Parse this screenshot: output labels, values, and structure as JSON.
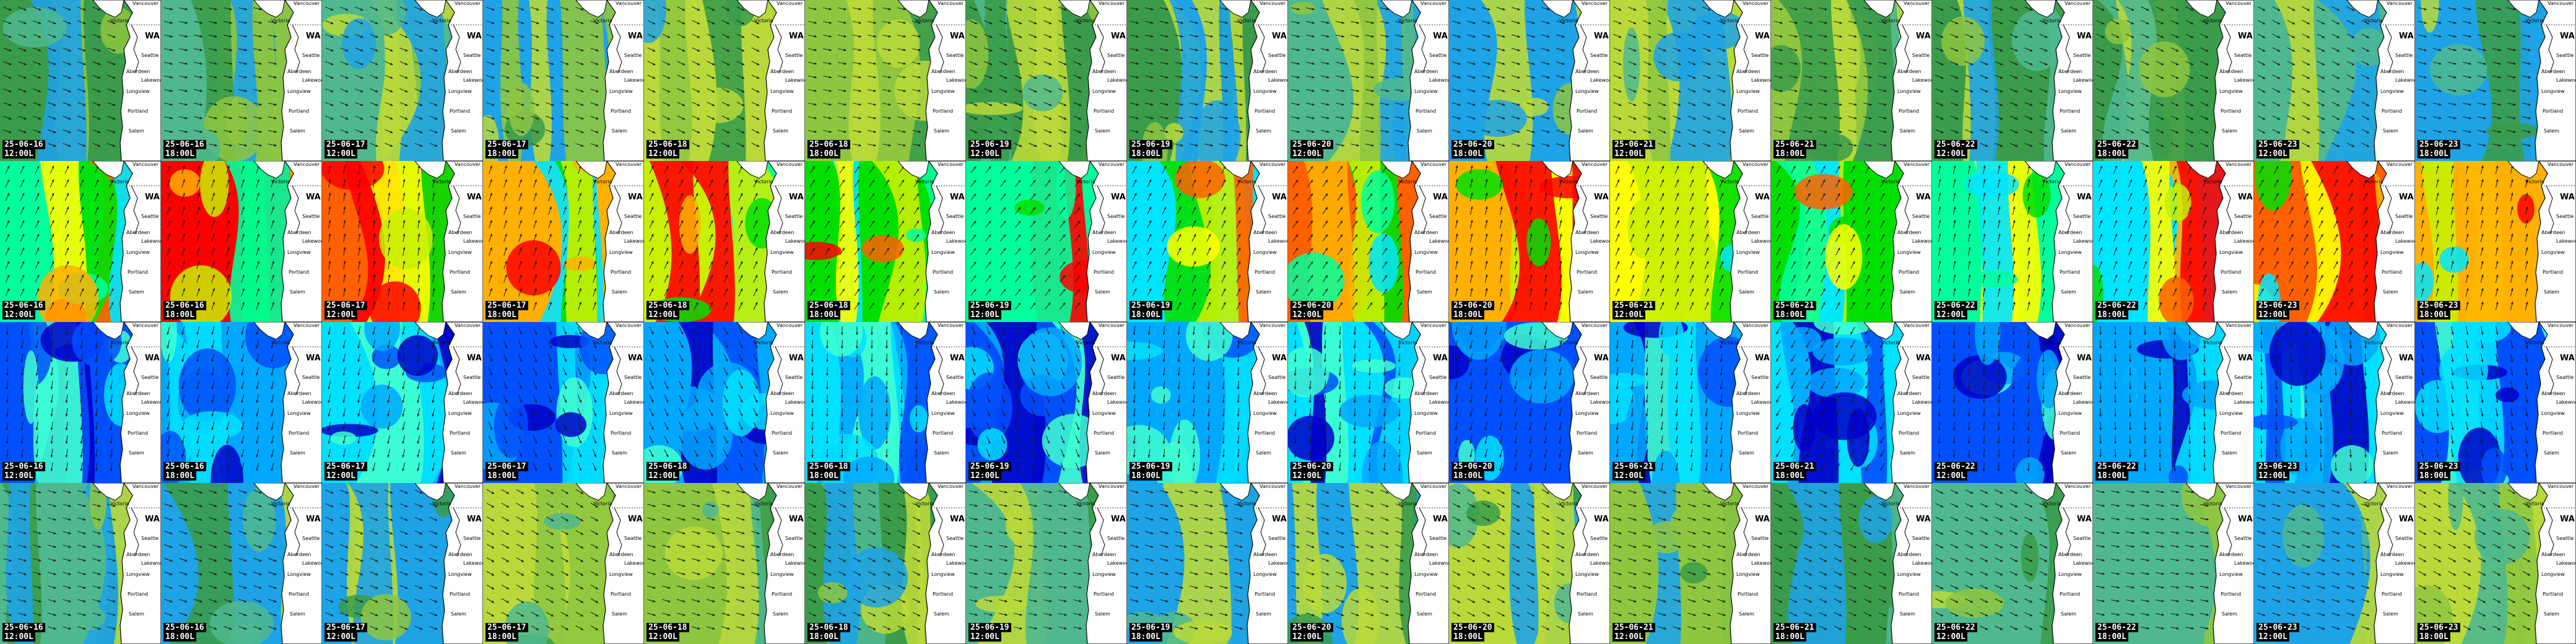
{
  "grid": {
    "columns": 16,
    "rows": [
      {
        "row": "wind-row",
        "theme": "wind",
        "dates": [
          "25-06-16",
          "25-06-16",
          "25-06-17",
          "25-06-17",
          "25-06-18",
          "25-06-18",
          "25-06-19",
          "25-06-19",
          "25-06-20",
          "25-06-20",
          "25-06-21",
          "25-06-21",
          "25-06-22",
          "25-06-22",
          "25-06-23",
          "25-06-23"
        ],
        "times": [
          "12:00L",
          "18:00L",
          "12:00L",
          "18:00L",
          "12:00L",
          "18:00L",
          "12:00L",
          "18:00L",
          "12:00L",
          "18:00L",
          "12:00L",
          "18:00L",
          "12:00L",
          "18:00L",
          "12:00L",
          "18:00L"
        ]
      },
      {
        "row": "wave-height-row",
        "theme": "wave",
        "dates": [
          "25-06-16",
          "25-06-16",
          "25-06-17",
          "25-06-17",
          "25-06-18",
          "25-06-18",
          "25-06-19",
          "25-06-19",
          "25-06-20",
          "25-06-20",
          "25-06-21",
          "25-06-21",
          "25-06-22",
          "25-06-22",
          "25-06-23",
          "25-06-23"
        ],
        "times": [
          "12:00L",
          "18:00L",
          "12:00L",
          "18:00L",
          "12:00L",
          "18:00L",
          "12:00L",
          "18:00L",
          "12:00L",
          "18:00L",
          "12:00L",
          "18:00L",
          "12:00L",
          "18:00L",
          "12:00L",
          "18:00L"
        ]
      },
      {
        "row": "current-row",
        "theme": "current",
        "dates": [
          "25-06-16",
          "25-06-16",
          "25-06-17",
          "25-06-17",
          "25-06-18",
          "25-06-18",
          "25-06-19",
          "25-06-19",
          "25-06-20",
          "25-06-20",
          "25-06-21",
          "25-06-21",
          "25-06-22",
          "25-06-22",
          "25-06-23",
          "25-06-23"
        ],
        "times": [
          "12:00L",
          "18:00L",
          "12:00L",
          "18:00L",
          "12:00L",
          "18:00L",
          "12:00L",
          "18:00L",
          "12:00L",
          "18:00L",
          "12:00L",
          "18:00L",
          "12:00L",
          "18:00L",
          "12:00L",
          "18:00L"
        ]
      },
      {
        "row": "gust-row",
        "theme": "wind",
        "dates": [
          "25-06-16",
          "25-06-16",
          "25-06-17",
          "25-06-17",
          "25-06-18",
          "25-06-18",
          "25-06-19",
          "25-06-19",
          "25-06-20",
          "25-06-20",
          "25-06-21",
          "25-06-21",
          "25-06-22",
          "25-06-22",
          "25-06-23",
          "25-06-23"
        ],
        "times": [
          "12:00L",
          "18:00L",
          "12:00L",
          "18:00L",
          "12:00L",
          "18:00L",
          "12:00L",
          "18:00L",
          "12:00L",
          "18:00L",
          "12:00L",
          "18:00L",
          "12:00L",
          "18:00L",
          "12:00L",
          "18:00L"
        ]
      }
    ]
  },
  "map_labels": {
    "state": "WA",
    "cities": [
      "Vancouver",
      "Victoria",
      "Seattle",
      "Aberdeen",
      "Longview",
      "Portland",
      "Salem",
      "Lakewood"
    ]
  },
  "colors": {
    "wind_scale": [
      "#1ea3e6",
      "#4fb88f",
      "#3a9c4a",
      "#8ec63f",
      "#b9d93a"
    ],
    "wave_scale": [
      "#00e5ff",
      "#00ff9c",
      "#00e000",
      "#c8f000",
      "#ffff00",
      "#ffb000",
      "#ff6000",
      "#ff0000"
    ],
    "current_scale": [
      "#0000c8",
      "#0050ff",
      "#00a8ff",
      "#00e0ff",
      "#40ffd0"
    ],
    "land": "#ffffff",
    "coastline": "#000000",
    "stamp_bg": "#000000",
    "stamp_text": "#ffffff"
  }
}
